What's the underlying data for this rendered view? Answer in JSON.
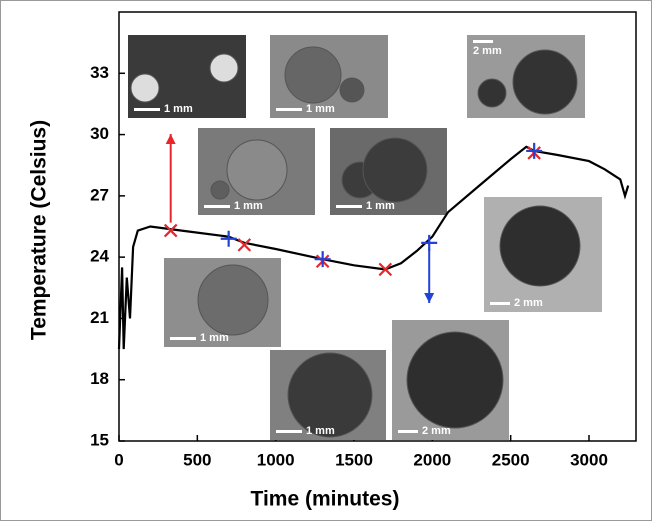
{
  "chart_data": {
    "type": "line",
    "x_label": "Time (minutes)",
    "y_label": "Temperature (Celsius)",
    "xlim": [
      0,
      3300
    ],
    "ylim": [
      15,
      36
    ],
    "xticks": [
      0,
      500,
      1000,
      1500,
      2000,
      2500,
      3000
    ],
    "yticks": [
      15,
      18,
      21,
      24,
      27,
      30,
      33
    ],
    "series": [
      {
        "color": "#000000",
        "x": [
          0,
          20,
          30,
          50,
          70,
          90,
          120,
          200,
          400,
          700,
          800,
          1000,
          1300,
          1500,
          1700,
          1800,
          1900,
          2000,
          2100,
          2300,
          2500,
          2600,
          2650,
          2800,
          3000,
          3100,
          3200,
          3230,
          3250
        ],
        "values": [
          19.5,
          23.5,
          19.5,
          23,
          21,
          24.5,
          25.3,
          25.5,
          25.3,
          25,
          24.7,
          24.4,
          23.9,
          23.6,
          23.4,
          23.7,
          24.3,
          25,
          26.2,
          27.5,
          28.8,
          29.4,
          29.2,
          29,
          28.7,
          28.3,
          27.8,
          27,
          27.5
        ]
      }
    ],
    "red_markers": {
      "color": "#e8262a",
      "x": [
        330,
        800,
        1300,
        1700,
        2650
      ],
      "values": [
        25.3,
        24.6,
        23.8,
        23.4,
        29.1
      ]
    },
    "blue_markers": {
      "color": "#2343d6",
      "x": [
        700,
        1300,
        1980,
        2650
      ],
      "values": [
        24.9,
        23.9,
        24.7,
        29.2
      ]
    },
    "insets": [
      "1 mm",
      "1 mm",
      "2 mm",
      "1 mm",
      "1 mm",
      "2 mm",
      "1 mm",
      "1 mm",
      "2 mm"
    ]
  }
}
